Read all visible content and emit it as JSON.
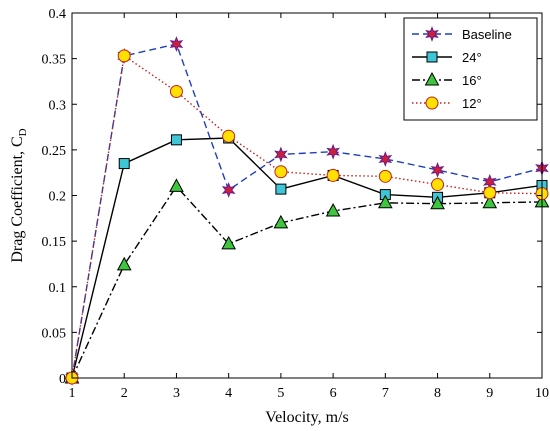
{
  "chart_data": {
    "type": "line",
    "xlabel": "Velocity, m/s",
    "ylabel": "Drag Coefficient, C",
    "ylabel_subscript": "D",
    "xlim": [
      1,
      10
    ],
    "ylim": [
      0,
      0.4
    ],
    "xticks": [
      1,
      2,
      3,
      4,
      5,
      6,
      7,
      8,
      9,
      10
    ],
    "yticks": [
      0,
      0.05,
      0.1,
      0.15,
      0.2,
      0.25,
      0.3,
      0.35,
      0.4
    ],
    "ytick_labels": [
      "0",
      "0.05",
      "0.1",
      "0.15",
      "0.2",
      "0.25",
      "0.3",
      "0.35",
      "0.4"
    ],
    "grid": false,
    "legend_position": "top-right",
    "x": [
      1,
      2,
      3,
      4,
      5,
      6,
      7,
      8,
      9,
      10
    ],
    "series": [
      {
        "name": "Baseline",
        "values": [
          0,
          0.353,
          0.366,
          0.206,
          0.245,
          0.248,
          0.24,
          0.228,
          0.215,
          0.23
        ],
        "line_color": "#1f3fbf",
        "line_style": "dashed",
        "marker": "star",
        "marker_fill": "#cc1f3a",
        "marker_stroke": "#6a1a8a"
      },
      {
        "name": "24°",
        "values": [
          0,
          0.235,
          0.261,
          0.263,
          0.207,
          0.222,
          0.201,
          0.198,
          0.203,
          0.211
        ],
        "line_color": "#000000",
        "line_style": "solid",
        "marker": "square",
        "marker_fill": "#3fc6d6",
        "marker_stroke": "#000000"
      },
      {
        "name": "16°",
        "values": [
          0,
          0.124,
          0.21,
          0.147,
          0.17,
          0.183,
          0.192,
          0.191,
          0.192,
          0.193
        ],
        "line_color": "#000000",
        "line_style": "dashdot",
        "marker": "triangle",
        "marker_fill": "#3fc63f",
        "marker_stroke": "#000000"
      },
      {
        "name": "12°",
        "values": [
          0,
          0.353,
          0.314,
          0.265,
          0.226,
          0.222,
          0.221,
          0.212,
          0.203,
          0.202
        ],
        "line_color": "#c0221f",
        "line_style": "dotted",
        "marker": "circle",
        "marker_fill": "#ffe000",
        "marker_stroke": "#c0221f"
      }
    ]
  }
}
